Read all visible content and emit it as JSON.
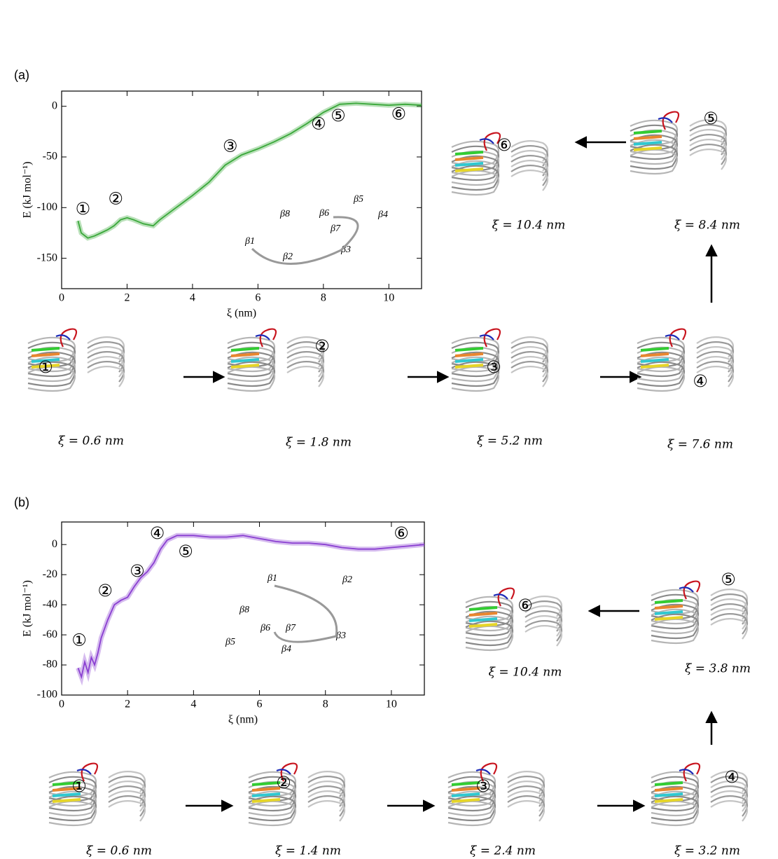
{
  "chart_data": [
    {
      "type": "line",
      "panel": "(a)",
      "xlabel": "ξ (nm)",
      "ylabel": "E (kJ mol⁻¹)",
      "xlim": [
        0,
        11
      ],
      "xticks": [
        0,
        2,
        4,
        6,
        8,
        10
      ],
      "ylim": [
        -180,
        15
      ],
      "yticks": [
        -150,
        -100,
        -50,
        0
      ],
      "series": [
        {
          "color": "#3aa83a",
          "x": [
            0.5,
            0.6,
            0.8,
            1.0,
            1.2,
            1.4,
            1.6,
            1.8,
            2.0,
            2.2,
            2.5,
            2.8,
            3.0,
            3.5,
            4.0,
            4.5,
            5.0,
            5.5,
            6.0,
            6.5,
            7.0,
            7.5,
            8.0,
            8.5,
            9.0,
            9.5,
            10.0,
            10.5,
            11.0
          ],
          "values": [
            -113,
            -125,
            -130,
            -128,
            -125,
            -122,
            -118,
            -112,
            -110,
            -112,
            -116,
            -118,
            -112,
            -100,
            -88,
            -75,
            -58,
            -48,
            -42,
            -35,
            -27,
            -17,
            -6,
            2,
            3,
            2,
            1,
            2,
            1
          ]
        }
      ],
      "annotations": [
        {
          "text": "①",
          "x": 0.65,
          "y": -102
        },
        {
          "text": "②",
          "x": 1.65,
          "y": -92
        },
        {
          "text": "③",
          "x": 5.15,
          "y": -40
        },
        {
          "text": "④",
          "x": 7.85,
          "y": -18
        },
        {
          "text": "⑤",
          "x": 8.45,
          "y": -10
        },
        {
          "text": "⑥",
          "x": 10.3,
          "y": -8
        }
      ],
      "inset_labels": [
        "β1",
        "β2",
        "β3",
        "β4",
        "β5",
        "β6",
        "β7",
        "β8"
      ],
      "snapshots": [
        {
          "marker": "①",
          "caption": "ξ = 0.6 nm"
        },
        {
          "marker": "②",
          "caption": "ξ = 1.8 nm"
        },
        {
          "marker": "③",
          "caption": "ξ = 5.2 nm"
        },
        {
          "marker": "④",
          "caption": "ξ = 7.6 nm"
        },
        {
          "marker": "⑤",
          "caption": "ξ = 8.4 nm"
        },
        {
          "marker": "⑥",
          "caption": "ξ = 10.4 nm"
        }
      ]
    },
    {
      "type": "line",
      "panel": "(b)",
      "xlabel": "ξ (nm)",
      "ylabel": "E (kJ mol⁻¹)",
      "xlim": [
        0,
        11
      ],
      "xticks": [
        0,
        2,
        4,
        6,
        8,
        10
      ],
      "ylim": [
        -100,
        15
      ],
      "yticks": [
        -100,
        -80,
        -60,
        -40,
        -20,
        0
      ],
      "series": [
        {
          "color": "#8a3fd1",
          "x": [
            0.5,
            0.6,
            0.7,
            0.8,
            0.9,
            1.0,
            1.1,
            1.2,
            1.4,
            1.6,
            1.8,
            2.0,
            2.2,
            2.4,
            2.6,
            2.8,
            3.0,
            3.2,
            3.5,
            4.0,
            4.5,
            5.0,
            5.5,
            6.0,
            6.5,
            7.0,
            7.5,
            8.0,
            8.5,
            9.0,
            9.5,
            10.0,
            10.5,
            11.0
          ],
          "values": [
            -82,
            -88,
            -78,
            -85,
            -75,
            -80,
            -72,
            -62,
            -50,
            -40,
            -37,
            -35,
            -28,
            -22,
            -18,
            -12,
            -3,
            3,
            6,
            6,
            5,
            5,
            6,
            4,
            2,
            1,
            1,
            0,
            -2,
            -3,
            -3,
            -2,
            -1,
            0
          ]
        }
      ],
      "annotations": [
        {
          "text": "①",
          "x": 0.53,
          "y": -64
        },
        {
          "text": "②",
          "x": 1.32,
          "y": -31
        },
        {
          "text": "③",
          "x": 2.29,
          "y": -18
        },
        {
          "text": "④",
          "x": 2.9,
          "y": 7
        },
        {
          "text": "⑤",
          "x": 3.76,
          "y": -5
        },
        {
          "text": "⑥",
          "x": 10.3,
          "y": 7
        }
      ],
      "inset_labels": [
        "β1",
        "β2",
        "β3",
        "β4",
        "β5",
        "β6",
        "β7",
        "β8"
      ],
      "snapshots": [
        {
          "marker": "①",
          "caption": "ξ = 0.6 nm"
        },
        {
          "marker": "②",
          "caption": "ξ = 1.4 nm"
        },
        {
          "marker": "③",
          "caption": "ξ = 2.4 nm"
        },
        {
          "marker": "④",
          "caption": "ξ = 3.2 nm"
        },
        {
          "marker": "⑤",
          "caption": "ξ = 3.8 nm"
        },
        {
          "marker": "⑥",
          "caption": "ξ = 10.4 nm"
        }
      ]
    }
  ]
}
